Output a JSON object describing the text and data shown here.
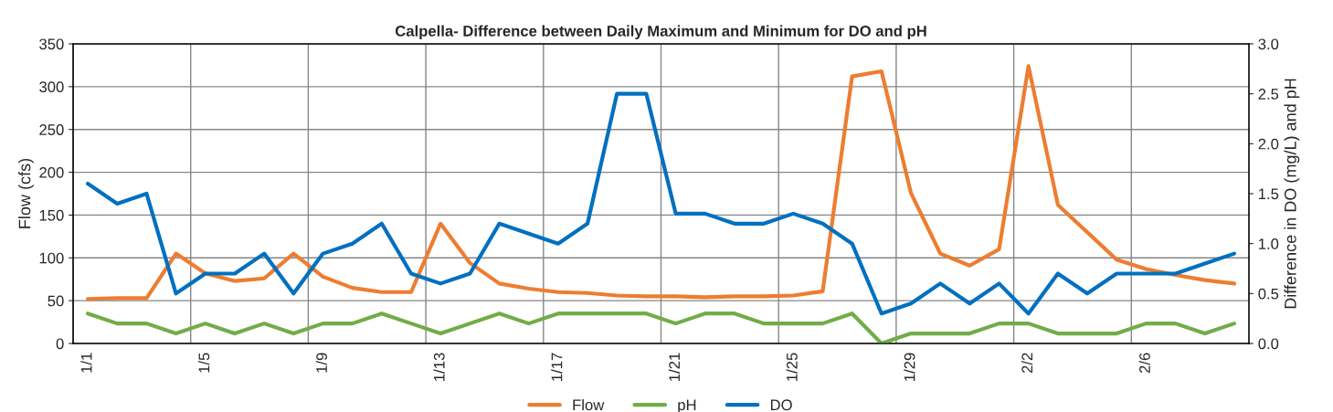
{
  "chart_data": {
    "type": "line",
    "title": "Calpella- Difference between Daily Maximum and Minimum for DO and pH",
    "ylabel": "Flow (cfs)",
    "y2label": "Difference in DO (mg/L) and pH",
    "categories": [
      "1/1",
      null,
      null,
      null,
      "1/5",
      null,
      null,
      null,
      "1/9",
      null,
      null,
      null,
      "1/13",
      null,
      null,
      null,
      "1/17",
      null,
      null,
      null,
      "1/21",
      null,
      null,
      null,
      "1/25",
      null,
      null,
      null,
      "1/29",
      null,
      null,
      null,
      "2/2",
      null,
      null,
      null,
      "2/6",
      null,
      null,
      null
    ],
    "series": [
      {
        "name": "Flow",
        "color": "#ed7d31",
        "values": [
          52,
          53,
          53,
          105,
          82,
          73,
          76,
          105,
          78,
          65,
          60,
          60,
          140,
          94,
          70,
          64,
          60,
          59,
          56,
          55,
          55,
          54,
          55,
          55,
          56,
          61,
          312,
          318,
          176,
          105,
          91,
          110,
          324,
          162,
          130,
          98,
          87,
          80,
          74,
          70
        ]
      },
      {
        "name": "pH",
        "color": "#70ad47",
        "axis": "y2",
        "values": [
          0.3,
          0.2,
          0.2,
          0.1,
          0.2,
          0.1,
          0.2,
          0.1,
          0.2,
          0.2,
          0.3,
          0.2,
          0.1,
          0.2,
          0.3,
          0.2,
          0.3,
          0.3,
          0.3,
          0.3,
          0.2,
          0.3,
          0.3,
          0.2,
          0.2,
          0.2,
          0.3,
          0.0,
          0.1,
          0.1,
          0.1,
          0.2,
          0.2,
          0.1,
          0.1,
          0.1,
          0.2,
          0.2,
          0.1,
          0.2
        ]
      },
      {
        "name": "DO",
        "color": "#0070c0",
        "axis": "y2",
        "values": [
          1.6,
          1.4,
          1.5,
          0.5,
          0.7,
          0.7,
          0.9,
          0.5,
          0.9,
          1.0,
          1.2,
          0.7,
          0.6,
          0.7,
          1.2,
          1.1,
          1.0,
          1.2,
          2.5,
          2.5,
          1.3,
          1.3,
          1.2,
          1.2,
          1.3,
          1.2,
          1.0,
          0.3,
          0.4,
          0.6,
          0.4,
          0.6,
          0.3,
          0.7,
          0.5,
          0.7,
          0.7,
          0.7,
          0.8,
          0.9
        ]
      }
    ],
    "ylim": [
      0,
      350
    ],
    "yticks": [
      0,
      50,
      100,
      150,
      200,
      250,
      300,
      350
    ],
    "y2lim": [
      0,
      3.0
    ],
    "y2ticks": [
      {
        "value": 0,
        "label": "0.0"
      },
      {
        "value": 0.5,
        "label": "0.5"
      },
      {
        "value": 1,
        "label": "1.0"
      },
      {
        "value": 1.5,
        "label": "1.5"
      },
      {
        "value": 2,
        "label": "2.0"
      },
      {
        "value": 2.5,
        "label": "2.5"
      },
      {
        "value": 3,
        "label": "3.0"
      }
    ],
    "grid": true,
    "legend": "bottom",
    "marker": "none",
    "line_style": "solid"
  }
}
